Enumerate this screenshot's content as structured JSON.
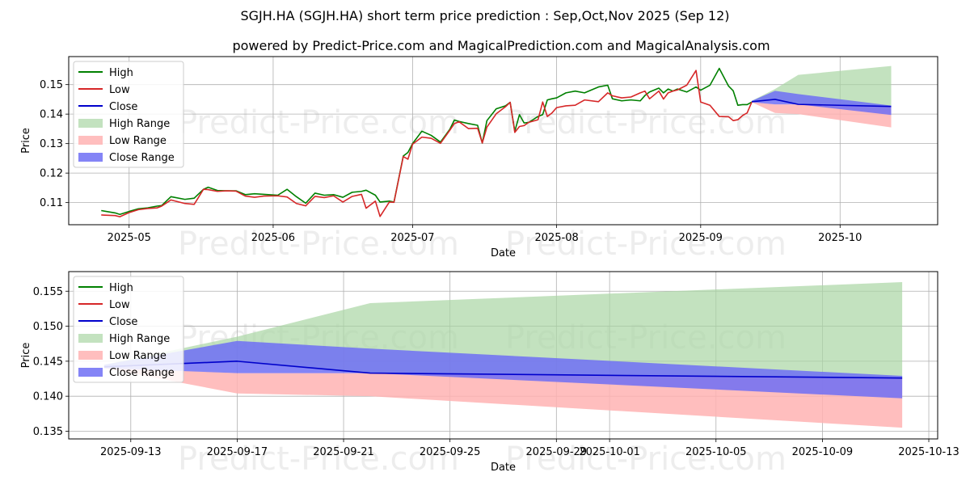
{
  "title": "SGJH.HA (SGJH.HA) short term price prediction : Sep,Oct,Nov 2025 (Sep 12)",
  "subtitle": "powered by Predict-Price.com and MagicalPrediction.com and MagicalAnalysis.com",
  "watermark": "Predict-Price.com",
  "colors": {
    "high": "#008000",
    "low": "#d62728",
    "close": "#0000cc",
    "high_range": "#a9d6a4",
    "low_range": "#ffb3b3",
    "close_range": "#6e6ef5"
  },
  "chart_data": [
    {
      "type": "line",
      "xlabel": "Date",
      "ylabel": "Price",
      "xlim": [
        "2025-04-18",
        "2025-10-22"
      ],
      "ylim": [
        0.1025,
        0.1595
      ],
      "x_ticks": [
        "2025-05-01",
        "2025-06-01",
        "2025-07-01",
        "2025-08-01",
        "2025-09-01",
        "2025-10-01"
      ],
      "x_tick_labels": [
        "2025-05",
        "2025-06",
        "2025-07",
        "2025-08",
        "2025-09",
        "2025-10"
      ],
      "y_ticks": [
        0.11,
        0.12,
        0.13,
        0.14,
        0.15
      ],
      "y_tick_labels": [
        "0.11",
        "0.12",
        "0.13",
        "0.14",
        "0.15"
      ],
      "grid": true,
      "legend_position": "top-left",
      "legend": [
        "High",
        "Low",
        "Close",
        "High Range",
        "Low Range",
        "Close Range"
      ],
      "series": [
        {
          "name": "High",
          "x": [
            "2025-04-25",
            "2025-04-28",
            "2025-04-29",
            "2025-05-01",
            "2025-05-03",
            "2025-05-05",
            "2025-05-07",
            "2025-05-08",
            "2025-05-10",
            "2025-05-13",
            "2025-05-15",
            "2025-05-17",
            "2025-05-18",
            "2025-05-20",
            "2025-05-22",
            "2025-05-24",
            "2025-05-26",
            "2025-05-28",
            "2025-05-30",
            "2025-06-02",
            "2025-06-04",
            "2025-06-06",
            "2025-06-08",
            "2025-06-10",
            "2025-06-12",
            "2025-06-14",
            "2025-06-16",
            "2025-06-18",
            "2025-06-20",
            "2025-06-21",
            "2025-06-23",
            "2025-06-24",
            "2025-06-26",
            "2025-06-27",
            "2025-06-29",
            "2025-06-30",
            "2025-07-01",
            "2025-07-03",
            "2025-07-05",
            "2025-07-07",
            "2025-07-09",
            "2025-07-10",
            "2025-07-11",
            "2025-07-13",
            "2025-07-15",
            "2025-07-16",
            "2025-07-17",
            "2025-07-19",
            "2025-07-21",
            "2025-07-22",
            "2025-07-23",
            "2025-07-24",
            "2025-07-25",
            "2025-07-26",
            "2025-07-28",
            "2025-07-29",
            "2025-07-30",
            "2025-07-31",
            "2025-08-01",
            "2025-08-03",
            "2025-08-05",
            "2025-08-07",
            "2025-08-10",
            "2025-08-12",
            "2025-08-13",
            "2025-08-15",
            "2025-08-17",
            "2025-08-19",
            "2025-08-20",
            "2025-08-21",
            "2025-08-23",
            "2025-08-24",
            "2025-08-25",
            "2025-08-26",
            "2025-08-27",
            "2025-08-29",
            "2025-08-31",
            "2025-09-01",
            "2025-09-03",
            "2025-09-05",
            "2025-09-07",
            "2025-09-08",
            "2025-09-09",
            "2025-09-10",
            "2025-09-11",
            "2025-09-12"
          ],
          "values": [
            0.1073,
            0.1065,
            0.106,
            0.107,
            0.1079,
            0.1082,
            0.1088,
            0.109,
            0.112,
            0.1111,
            0.1115,
            0.1145,
            0.1152,
            0.1141,
            0.114,
            0.114,
            0.1127,
            0.113,
            0.1128,
            0.1125,
            0.1145,
            0.112,
            0.1098,
            0.1132,
            0.1125,
            0.1127,
            0.1118,
            0.1135,
            0.1138,
            0.1142,
            0.1125,
            0.1102,
            0.1105,
            0.1102,
            0.1258,
            0.127,
            0.13,
            0.1342,
            0.1328,
            0.1305,
            0.1348,
            0.138,
            0.1375,
            0.1368,
            0.1362,
            0.1302,
            0.1378,
            0.1418,
            0.1428,
            0.144,
            0.1342,
            0.1398,
            0.137,
            0.1372,
            0.1392,
            0.1398,
            0.1448,
            0.1452,
            0.1455,
            0.1472,
            0.1478,
            0.1472,
            0.1492,
            0.1498,
            0.1452,
            0.1445,
            0.1448,
            0.1445,
            0.1463,
            0.1475,
            0.1488,
            0.1472,
            0.1485,
            0.1478,
            0.1485,
            0.1475,
            0.1492,
            0.1481,
            0.1498,
            0.1555,
            0.1495,
            0.1479,
            0.143,
            0.1432,
            0.1432,
            0.1441
          ]
        },
        {
          "name": "Low",
          "x": [
            "2025-04-25",
            "2025-04-28",
            "2025-04-29",
            "2025-05-01",
            "2025-05-03",
            "2025-05-05",
            "2025-05-07",
            "2025-05-08",
            "2025-05-10",
            "2025-05-13",
            "2025-05-15",
            "2025-05-17",
            "2025-05-18",
            "2025-05-20",
            "2025-05-22",
            "2025-05-24",
            "2025-05-26",
            "2025-05-28",
            "2025-05-30",
            "2025-06-02",
            "2025-06-04",
            "2025-06-06",
            "2025-06-08",
            "2025-06-10",
            "2025-06-12",
            "2025-06-14",
            "2025-06-16",
            "2025-06-18",
            "2025-06-20",
            "2025-06-21",
            "2025-06-23",
            "2025-06-24",
            "2025-06-26",
            "2025-06-27",
            "2025-06-29",
            "2025-06-30",
            "2025-07-01",
            "2025-07-03",
            "2025-07-05",
            "2025-07-07",
            "2025-07-09",
            "2025-07-10",
            "2025-07-11",
            "2025-07-13",
            "2025-07-15",
            "2025-07-16",
            "2025-07-17",
            "2025-07-19",
            "2025-07-21",
            "2025-07-22",
            "2025-07-23",
            "2025-07-24",
            "2025-07-25",
            "2025-07-26",
            "2025-07-28",
            "2025-07-29",
            "2025-07-30",
            "2025-07-31",
            "2025-08-01",
            "2025-08-03",
            "2025-08-05",
            "2025-08-07",
            "2025-08-10",
            "2025-08-12",
            "2025-08-13",
            "2025-08-15",
            "2025-08-17",
            "2025-08-19",
            "2025-08-20",
            "2025-08-21",
            "2025-08-23",
            "2025-08-24",
            "2025-08-25",
            "2025-08-26",
            "2025-08-27",
            "2025-08-29",
            "2025-08-31",
            "2025-09-01",
            "2025-09-03",
            "2025-09-05",
            "2025-09-07",
            "2025-09-08",
            "2025-09-09",
            "2025-09-10",
            "2025-09-11",
            "2025-09-12"
          ],
          "values": [
            0.1058,
            0.1056,
            0.1052,
            0.1066,
            0.1076,
            0.108,
            0.1082,
            0.1088,
            0.1109,
            0.1097,
            0.1094,
            0.1145,
            0.1144,
            0.1138,
            0.114,
            0.1139,
            0.1122,
            0.1118,
            0.1122,
            0.1123,
            0.1119,
            0.1097,
            0.1089,
            0.1121,
            0.1117,
            0.1123,
            0.1102,
            0.1121,
            0.1128,
            0.1081,
            0.1105,
            0.1053,
            0.1102,
            0.1101,
            0.1256,
            0.1247,
            0.1298,
            0.1322,
            0.1318,
            0.1301,
            0.1345,
            0.1368,
            0.1374,
            0.1351,
            0.1352,
            0.1302,
            0.1356,
            0.1401,
            0.1425,
            0.144,
            0.1338,
            0.1358,
            0.1361,
            0.1372,
            0.1381,
            0.1441,
            0.1392,
            0.1404,
            0.1422,
            0.1428,
            0.143,
            0.1448,
            0.1442,
            0.1472,
            0.1462,
            0.1455,
            0.1458,
            0.1472,
            0.1478,
            0.1452,
            0.1478,
            0.1451,
            0.1472,
            0.1478,
            0.1482,
            0.1498,
            0.1548,
            0.1441,
            0.143,
            0.1392,
            0.1391,
            0.1378,
            0.1381,
            0.1395,
            0.1404,
            0.1441
          ]
        },
        {
          "name": "Close",
          "x": [
            "2025-09-12",
            "2025-09-17",
            "2025-09-22",
            "2025-10-12"
          ],
          "values": [
            0.1442,
            0.145,
            0.1433,
            0.1426
          ]
        }
      ],
      "ranges": [
        {
          "name": "High Range",
          "x": [
            "2025-09-12",
            "2025-09-17",
            "2025-09-22",
            "2025-10-12"
          ],
          "upper": [
            0.1445,
            0.1485,
            0.1533,
            0.1563
          ],
          "lower": [
            0.1442,
            0.1448,
            0.1432,
            0.1426
          ]
        },
        {
          "name": "Low Range",
          "x": [
            "2025-09-12",
            "2025-09-17",
            "2025-09-22",
            "2025-10-12"
          ],
          "upper": [
            0.1441,
            0.1433,
            0.1433,
            0.1426
          ],
          "lower": [
            0.144,
            0.1404,
            0.14,
            0.1355
          ]
        },
        {
          "name": "Close Range",
          "x": [
            "2025-09-12",
            "2025-09-17",
            "2025-09-22",
            "2025-10-12"
          ],
          "upper": [
            0.1445,
            0.1479,
            0.1468,
            0.1429
          ],
          "lower": [
            0.144,
            0.1433,
            0.1433,
            0.1397
          ]
        }
      ]
    },
    {
      "type": "line",
      "xlabel": "Date",
      "ylabel": "Price",
      "xlim": [
        "2025-09-10T16:00",
        "2025-10-13T08:00"
      ],
      "ylim": [
        0.1339,
        0.1578
      ],
      "x_ticks": [
        "2025-09-13",
        "2025-09-17",
        "2025-09-21",
        "2025-09-25",
        "2025-09-29",
        "2025-10-01",
        "2025-10-05",
        "2025-10-09",
        "2025-10-13"
      ],
      "x_tick_labels": [
        "2025-09-13",
        "2025-09-17",
        "2025-09-21",
        "2025-09-25",
        "2025-09-29",
        "2025-10-01",
        "2025-10-05",
        "2025-10-09",
        "2025-10-13"
      ],
      "y_ticks": [
        0.135,
        0.14,
        0.145,
        0.15,
        0.155
      ],
      "y_tick_labels": [
        "0.135",
        "0.140",
        "0.145",
        "0.150",
        "0.155"
      ],
      "grid": true,
      "legend_position": "top-left",
      "legend": [
        "High",
        "Low",
        "Close",
        "High Range",
        "Low Range",
        "Close Range"
      ],
      "series": [
        {
          "name": "Close",
          "x": [
            "2025-09-12",
            "2025-09-17",
            "2025-09-22",
            "2025-10-12"
          ],
          "values": [
            0.1442,
            0.145,
            0.1433,
            0.1426
          ]
        }
      ],
      "ranges": [
        {
          "name": "High Range",
          "x": [
            "2025-09-12",
            "2025-09-17",
            "2025-09-22",
            "2025-10-12"
          ],
          "upper": [
            0.1445,
            0.1485,
            0.1533,
            0.1563
          ],
          "lower": [
            0.1442,
            0.1448,
            0.1432,
            0.1426
          ]
        },
        {
          "name": "Low Range",
          "x": [
            "2025-09-12",
            "2025-09-17",
            "2025-09-22",
            "2025-10-12"
          ],
          "upper": [
            0.1441,
            0.1433,
            0.1433,
            0.1426
          ],
          "lower": [
            0.144,
            0.1404,
            0.14,
            0.1355
          ]
        },
        {
          "name": "Close Range",
          "x": [
            "2025-09-12",
            "2025-09-17",
            "2025-09-22",
            "2025-10-12"
          ],
          "upper": [
            0.1445,
            0.1479,
            0.1468,
            0.1429
          ],
          "lower": [
            0.144,
            0.1433,
            0.1433,
            0.1397
          ]
        }
      ]
    }
  ]
}
